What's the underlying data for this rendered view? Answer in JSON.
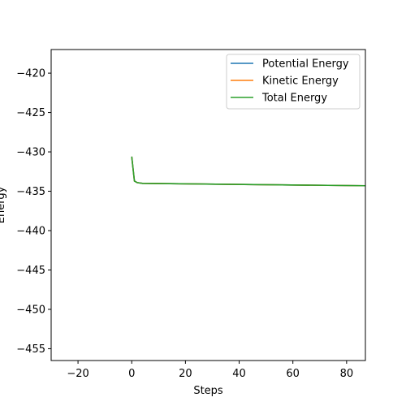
{
  "chart_data": {
    "type": "line",
    "title": "",
    "xlabel": "Steps",
    "ylabel": "Energy",
    "xlim": [
      -30,
      87
    ],
    "ylim": [
      -456.5,
      -417
    ],
    "xticks": [
      -20,
      0,
      20,
      40,
      60,
      80
    ],
    "yticks": [
      -420,
      -425,
      -430,
      -435,
      -440,
      -445,
      -450,
      -455
    ],
    "grid": false,
    "legend": {
      "placement": "top-right"
    },
    "series": [
      {
        "name": "Potential Energy",
        "color": "#1f77b4",
        "x": [
          0,
          1,
          2,
          4,
          87
        ],
        "y": [
          -430.6,
          -433.7,
          -433.9,
          -434.0,
          -434.3
        ]
      },
      {
        "name": "Kinetic Energy",
        "color": "#ff7f0e",
        "x": [
          0,
          1,
          2,
          4,
          87
        ],
        "y": [
          -430.6,
          -433.7,
          -433.9,
          -434.0,
          -434.3
        ]
      },
      {
        "name": "Total Energy",
        "color": "#2ca02c",
        "x": [
          0,
          1,
          2,
          4,
          87
        ],
        "y": [
          -430.6,
          -433.7,
          -433.9,
          -434.0,
          -434.3
        ]
      }
    ]
  }
}
